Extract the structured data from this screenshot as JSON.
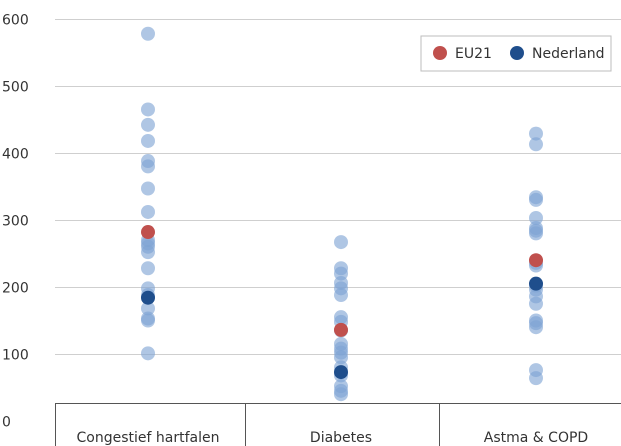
{
  "chart_data": {
    "type": "scatter",
    "title": "",
    "xlabel": "",
    "ylabel": "",
    "ylim": [
      0,
      600
    ],
    "yticks": [
      0,
      100,
      200,
      300,
      400,
      500,
      600
    ],
    "grid": true,
    "legend_position": "top-right",
    "categories": [
      "Congestief hartfalen",
      "Diabetes",
      "Astma & COPD"
    ],
    "colors": {
      "countries": "#7ea3d4",
      "EU21": "#c0504d",
      "Nederland": "#1f4e8c"
    },
    "series": [
      {
        "name": "",
        "role": "countries",
        "values": [
          [
            578,
            465,
            442,
            418,
            388,
            380,
            347,
            312,
            270,
            265,
            260,
            252,
            228,
            198,
            188,
            168,
            153,
            150,
            101
          ],
          [
            267,
            228,
            220,
            206,
            198,
            188,
            155,
            148,
            135,
            115,
            108,
            102,
            95,
            80,
            68,
            52,
            45,
            40
          ],
          [
            429,
            413,
            334,
            330,
            303,
            288,
            284,
            280,
            236,
            232,
            202,
            196,
            186,
            175,
            150,
            146,
            140,
            76,
            64
          ]
        ]
      },
      {
        "name": "EU21",
        "role": "EU21",
        "values": [
          282,
          136,
          240
        ]
      },
      {
        "name": "Nederland",
        "role": "Nederland",
        "values": [
          184,
          73,
          205
        ]
      }
    ],
    "legend": [
      "EU21",
      "Nederland"
    ]
  }
}
